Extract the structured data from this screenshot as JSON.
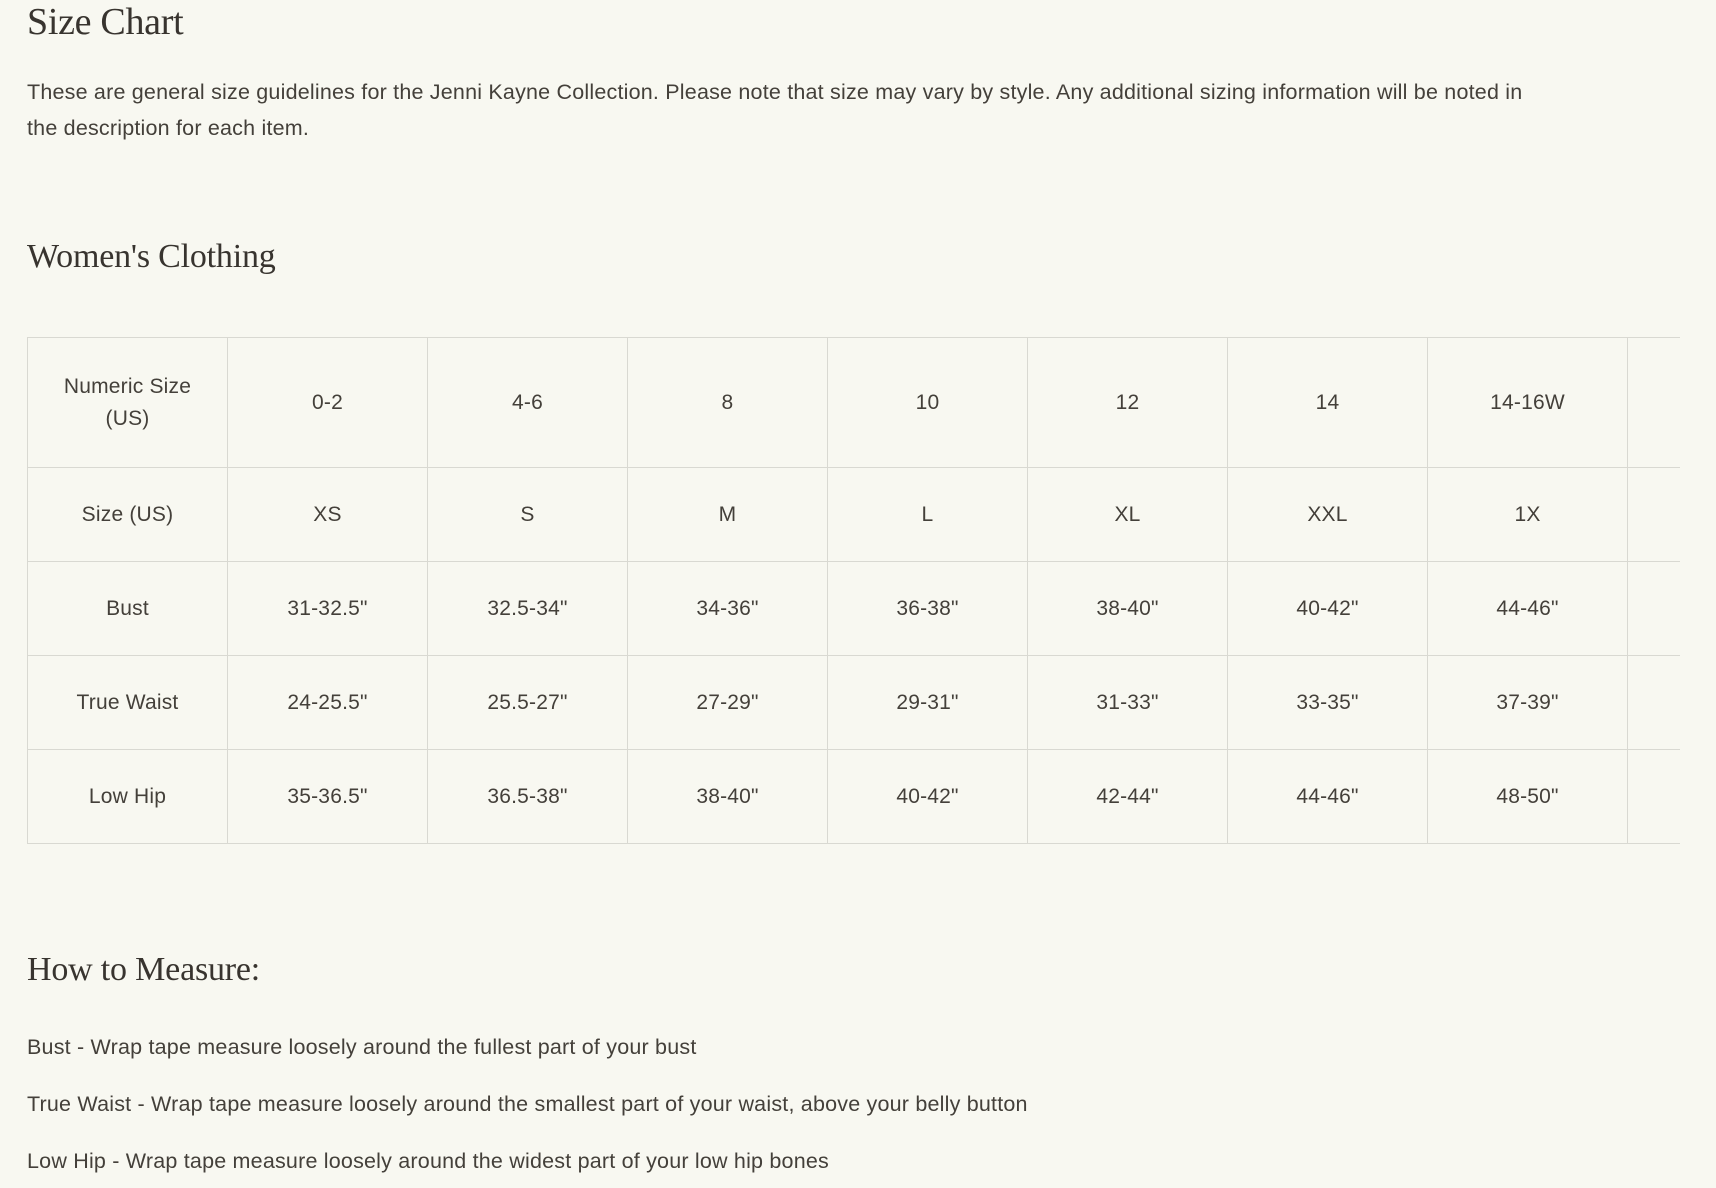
{
  "page": {
    "title": "Size Chart",
    "intro": "These are general size guidelines for the Jenni Kayne Collection. Please note that size may vary by style. Any additional sizing information will be noted in the description for each item.",
    "womens_section_heading": "Women's Clothing",
    "measure_section_heading": "How to Measure:"
  },
  "size_table": {
    "rows": [
      {
        "label": "Numeric Size (US)",
        "values": [
          "0-2",
          "4-6",
          "8",
          "10",
          "12",
          "14",
          "14-16W",
          ""
        ]
      },
      {
        "label": "Size (US)",
        "values": [
          "XS",
          "S",
          "M",
          "L",
          "XL",
          "XXL",
          "1X",
          ""
        ]
      },
      {
        "label": "Bust",
        "values": [
          "31-32.5\"",
          "32.5-34\"",
          "34-36\"",
          "36-38\"",
          "38-40\"",
          "40-42\"",
          "44-46\"",
          ""
        ]
      },
      {
        "label": "True Waist",
        "values": [
          "24-25.5\"",
          "25.5-27\"",
          "27-29\"",
          "29-31\"",
          "31-33\"",
          "33-35\"",
          "37-39\"",
          ""
        ]
      },
      {
        "label": "Low Hip",
        "values": [
          "35-36.5\"",
          "36.5-38\"",
          "38-40\"",
          "40-42\"",
          "42-44\"",
          "44-46\"",
          "48-50\"",
          ""
        ]
      }
    ]
  },
  "measure_instructions": [
    "Bust - Wrap tape measure loosely around the fullest part of your bust",
    "True Waist - Wrap tape measure loosely around the smallest part of your waist, above your belly button",
    "Low Hip - Wrap tape measure loosely around the widest part of your low hip bones"
  ],
  "colors": {
    "background": "#f8f8f1",
    "table_border": "#d9d9d2",
    "heading_text": "#38342f",
    "body_text": "#44403a"
  }
}
